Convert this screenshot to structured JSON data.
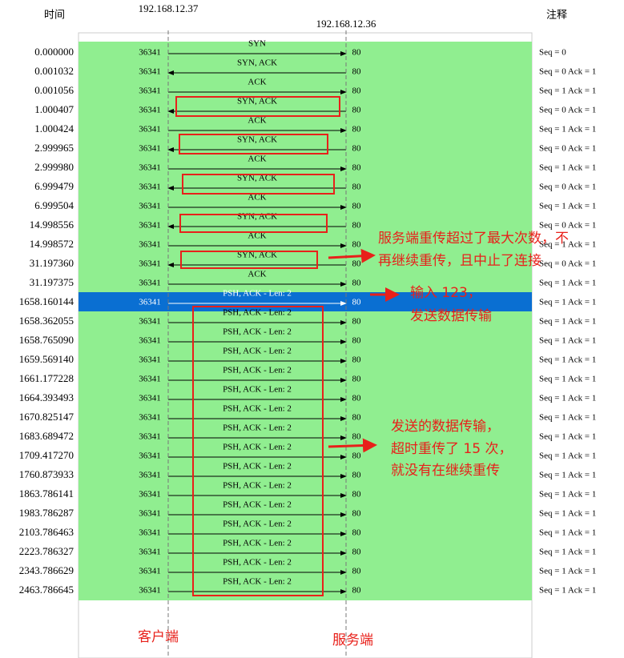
{
  "header": {
    "time": "时间",
    "client_ip": "192.168.12.37",
    "server_ip": "192.168.12.36",
    "comment": "注释"
  },
  "rows": [
    {
      "time": "0.000000",
      "src": "36341",
      "dst": "80",
      "label": "SYN",
      "direction": "right",
      "comment": "Seq = 0"
    },
    {
      "time": "0.001032",
      "src": "36341",
      "dst": "80",
      "label": "SYN, ACK",
      "direction": "left",
      "comment": "Seq = 0 Ack = 1"
    },
    {
      "time": "0.001056",
      "src": "36341",
      "dst": "80",
      "label": "ACK",
      "direction": "right",
      "comment": "Seq = 1 Ack = 1"
    },
    {
      "time": "1.000407",
      "src": "36341",
      "dst": "80",
      "label": "SYN, ACK",
      "direction": "left",
      "comment": "Seq = 0 Ack = 1"
    },
    {
      "time": "1.000424",
      "src": "36341",
      "dst": "80",
      "label": "ACK",
      "direction": "right",
      "comment": "Seq = 1 Ack = 1"
    },
    {
      "time": "2.999965",
      "src": "36341",
      "dst": "80",
      "label": "SYN, ACK",
      "direction": "left",
      "comment": "Seq = 0 Ack = 1"
    },
    {
      "time": "2.999980",
      "src": "36341",
      "dst": "80",
      "label": "ACK",
      "direction": "right",
      "comment": "Seq = 1 Ack = 1"
    },
    {
      "time": "6.999479",
      "src": "36341",
      "dst": "80",
      "label": "SYN, ACK",
      "direction": "left",
      "comment": "Seq = 0 Ack = 1"
    },
    {
      "time": "6.999504",
      "src": "36341",
      "dst": "80",
      "label": "ACK",
      "direction": "right",
      "comment": "Seq = 1 Ack = 1"
    },
    {
      "time": "14.998556",
      "src": "36341",
      "dst": "80",
      "label": "SYN, ACK",
      "direction": "left",
      "comment": "Seq = 0 Ack = 1"
    },
    {
      "time": "14.998572",
      "src": "36341",
      "dst": "80",
      "label": "ACK",
      "direction": "right",
      "comment": "Seq = 1 Ack = 1"
    },
    {
      "time": "31.197360",
      "src": "36341",
      "dst": "80",
      "label": "SYN, ACK",
      "direction": "left",
      "comment": "Seq = 0 Ack = 1"
    },
    {
      "time": "31.197375",
      "src": "36341",
      "dst": "80",
      "label": "ACK",
      "direction": "right",
      "comment": "Seq = 1 Ack = 1"
    },
    {
      "time": "1658.160144",
      "src": "36341",
      "dst": "80",
      "label": "PSH, ACK - Len: 2",
      "direction": "right",
      "comment": "Seq = 1 Ack = 1",
      "selected": true
    },
    {
      "time": "1658.362055",
      "src": "36341",
      "dst": "80",
      "label": "PSH, ACK - Len: 2",
      "direction": "right",
      "comment": "Seq = 1 Ack = 1"
    },
    {
      "time": "1658.765090",
      "src": "36341",
      "dst": "80",
      "label": "PSH, ACK - Len: 2",
      "direction": "right",
      "comment": "Seq = 1 Ack = 1"
    },
    {
      "time": "1659.569140",
      "src": "36341",
      "dst": "80",
      "label": "PSH, ACK - Len: 2",
      "direction": "right",
      "comment": "Seq = 1 Ack = 1"
    },
    {
      "time": "1661.177228",
      "src": "36341",
      "dst": "80",
      "label": "PSH, ACK - Len: 2",
      "direction": "right",
      "comment": "Seq = 1 Ack = 1"
    },
    {
      "time": "1664.393493",
      "src": "36341",
      "dst": "80",
      "label": "PSH, ACK - Len: 2",
      "direction": "right",
      "comment": "Seq = 1 Ack = 1"
    },
    {
      "time": "1670.825147",
      "src": "36341",
      "dst": "80",
      "label": "PSH, ACK - Len: 2",
      "direction": "right",
      "comment": "Seq = 1 Ack = 1"
    },
    {
      "time": "1683.689472",
      "src": "36341",
      "dst": "80",
      "label": "PSH, ACK - Len: 2",
      "direction": "right",
      "comment": "Seq = 1 Ack = 1"
    },
    {
      "time": "1709.417270",
      "src": "36341",
      "dst": "80",
      "label": "PSH, ACK - Len: 2",
      "direction": "right",
      "comment": "Seq = 1 Ack = 1"
    },
    {
      "time": "1760.873933",
      "src": "36341",
      "dst": "80",
      "label": "PSH, ACK - Len: 2",
      "direction": "right",
      "comment": "Seq = 1 Ack = 1"
    },
    {
      "time": "1863.786141",
      "src": "36341",
      "dst": "80",
      "label": "PSH, ACK - Len: 2",
      "direction": "right",
      "comment": "Seq = 1 Ack = 1"
    },
    {
      "time": "1983.786287",
      "src": "36341",
      "dst": "80",
      "label": "PSH, ACK - Len: 2",
      "direction": "right",
      "comment": "Seq = 1 Ack = 1"
    },
    {
      "time": "2103.786463",
      "src": "36341",
      "dst": "80",
      "label": "PSH, ACK - Len: 2",
      "direction": "right",
      "comment": "Seq = 1 Ack = 1"
    },
    {
      "time": "2223.786327",
      "src": "36341",
      "dst": "80",
      "label": "PSH, ACK - Len: 2",
      "direction": "right",
      "comment": "Seq = 1 Ack = 1"
    },
    {
      "time": "2343.786629",
      "src": "36341",
      "dst": "80",
      "label": "PSH, ACK - Len: 2",
      "direction": "right",
      "comment": "Seq = 1 Ack = 1"
    },
    {
      "time": "2463.786645",
      "src": "36341",
      "dst": "80",
      "label": "PSH, ACK - Len: 2",
      "direction": "right",
      "comment": "Seq = 1 Ack = 1"
    }
  ],
  "annotations": {
    "abort": [
      "服务端重传超过了最大次数，不",
      "再继续重传，且中止了连接"
    ],
    "input": [
      "输入 123，",
      "发送数据传输"
    ],
    "retrans": [
      "发送的数据传输，",
      "超时重传了 15 次，",
      "就没有在继续重传"
    ],
    "client": "客户端",
    "server": "服务端"
  }
}
